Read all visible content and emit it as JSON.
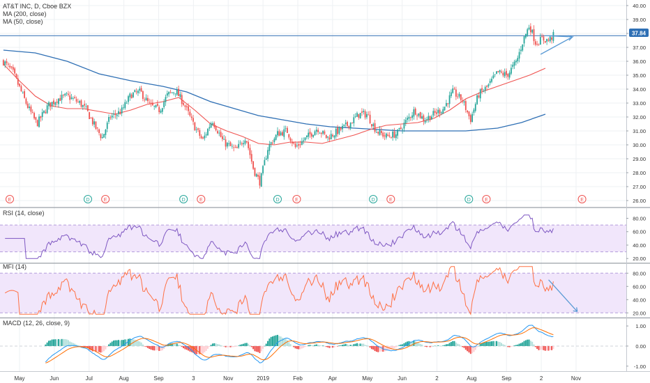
{
  "header": {
    "title": "AT&T INC, D, Cboe BZX",
    "ma200_label": "MA (200, close)",
    "ma50_label": "MA (50, close)"
  },
  "colors": {
    "up": "#26a69a",
    "down": "#ef5350",
    "ma200": "#2e6fb4",
    "ma50": "#ef5350",
    "rsi": "#7e57c2",
    "mfi": "#ff7043",
    "band_fill": "#f1e6fb",
    "macd_line": "#2196f3",
    "signal_line": "#ff6d00",
    "drawing": "#5b9bd5",
    "price_line": "#2e6fb4",
    "axis_text": "#333333",
    "earnings": "#ef5350",
    "dividend": "#26a69a"
  },
  "chart_data": [
    {
      "id": "price",
      "type": "candlestick",
      "title": "AT&T INC, D, Cboe BZX",
      "y_ticks": [
        "26.00",
        "27.00",
        "28.00",
        "29.00",
        "30.00",
        "31.00",
        "32.00",
        "33.00",
        "34.00",
        "35.00",
        "36.00",
        "37.00",
        "38.00",
        "39.00",
        "40.00"
      ],
      "ylim": [
        25.6,
        40.4
      ],
      "last_price_label": "37.84",
      "last_price": 37.84,
      "x_ticks": [
        "May",
        "Jun",
        "Jul",
        "Aug",
        "Sep",
        "3",
        "Nov",
        "2019",
        "Feb",
        "Apr",
        "May",
        "Jun",
        "2",
        "Aug",
        "Sep",
        "2",
        "Nov"
      ],
      "anchors": [
        {
          "t": 0,
          "v": 36.0
        },
        {
          "t": 0.6,
          "v": 35.2
        },
        {
          "t": 1.5,
          "v": 32.8
        },
        {
          "t": 2.1,
          "v": 31.5
        },
        {
          "t": 2.8,
          "v": 32.8
        },
        {
          "t": 3.4,
          "v": 33.3
        },
        {
          "t": 4.0,
          "v": 33.5
        },
        {
          "t": 4.8,
          "v": 33.0
        },
        {
          "t": 5.2,
          "v": 32.5
        },
        {
          "t": 5.8,
          "v": 31.2
        },
        {
          "t": 6.2,
          "v": 30.5
        },
        {
          "t": 6.7,
          "v": 32.0
        },
        {
          "t": 7.4,
          "v": 32.4
        },
        {
          "t": 8.0,
          "v": 33.6
        },
        {
          "t": 8.6,
          "v": 33.8
        },
        {
          "t": 9.2,
          "v": 32.8
        },
        {
          "t": 9.8,
          "v": 32.5
        },
        {
          "t": 10.3,
          "v": 33.6
        },
        {
          "t": 10.8,
          "v": 33.9
        },
        {
          "t": 11.3,
          "v": 33.0
        },
        {
          "t": 11.9,
          "v": 31.5
        },
        {
          "t": 12.5,
          "v": 30.3
        },
        {
          "t": 13.1,
          "v": 31.8
        },
        {
          "t": 13.8,
          "v": 30.2
        },
        {
          "t": 14.6,
          "v": 29.6
        },
        {
          "t": 15.2,
          "v": 30.6
        },
        {
          "t": 15.7,
          "v": 28.2
        },
        {
          "t": 16.1,
          "v": 27.3
        },
        {
          "t": 16.6,
          "v": 29.8
        },
        {
          "t": 17.2,
          "v": 30.8
        },
        {
          "t": 17.8,
          "v": 31.0
        },
        {
          "t": 18.3,
          "v": 29.8
        },
        {
          "t": 19.0,
          "v": 30.5
        },
        {
          "t": 19.7,
          "v": 31.2
        },
        {
          "t": 20.3,
          "v": 30.5
        },
        {
          "t": 21.0,
          "v": 31.0
        },
        {
          "t": 21.7,
          "v": 31.5
        },
        {
          "t": 22.3,
          "v": 32.2
        },
        {
          "t": 22.8,
          "v": 32.2
        },
        {
          "t": 23.4,
          "v": 31.0
        },
        {
          "t": 24.0,
          "v": 30.6
        },
        {
          "t": 24.7,
          "v": 30.8
        },
        {
          "t": 25.2,
          "v": 31.6
        },
        {
          "t": 25.8,
          "v": 32.5
        },
        {
          "t": 26.4,
          "v": 31.8
        },
        {
          "t": 27.0,
          "v": 32.2
        },
        {
          "t": 27.6,
          "v": 32.6
        },
        {
          "t": 28.2,
          "v": 33.8
        },
        {
          "t": 28.8,
          "v": 33.2
        },
        {
          "t": 29.3,
          "v": 31.8
        },
        {
          "t": 29.8,
          "v": 33.6
        },
        {
          "t": 30.4,
          "v": 34.2
        },
        {
          "t": 31.0,
          "v": 35.2
        },
        {
          "t": 31.6,
          "v": 35.0
        },
        {
          "t": 32.2,
          "v": 36.0
        },
        {
          "t": 32.6,
          "v": 37.5
        },
        {
          "t": 33.0,
          "v": 38.6
        },
        {
          "t": 33.4,
          "v": 37.3
        },
        {
          "t": 33.8,
          "v": 37.6
        },
        {
          "t": 34.2,
          "v": 37.5
        },
        {
          "t": 34.5,
          "v": 37.84
        }
      ],
      "series": [
        {
          "name": "MA (200, close)",
          "points": [
            [
              0,
              36.8
            ],
            [
              2,
              36.6
            ],
            [
              4,
              36.0
            ],
            [
              6,
              35.1
            ],
            [
              8,
              34.6
            ],
            [
              10,
              34.2
            ],
            [
              11.5,
              33.8
            ],
            [
              13,
              33.1
            ],
            [
              14.5,
              32.6
            ],
            [
              16,
              32.1
            ],
            [
              17.5,
              31.8
            ],
            [
              19,
              31.5
            ],
            [
              20.5,
              31.3
            ],
            [
              22,
              31.2
            ],
            [
              23.5,
              31.1
            ],
            [
              25,
              31.0
            ],
            [
              27,
              31.0
            ],
            [
              29,
              31.0
            ],
            [
              31,
              31.2
            ],
            [
              32.5,
              31.6
            ],
            [
              34,
              32.2
            ]
          ]
        },
        {
          "name": "MA (50, close)",
          "points": [
            [
              0,
              35.8
            ],
            [
              1,
              34.6
            ],
            [
              2,
              33.5
            ],
            [
              3,
              32.8
            ],
            [
              4,
              32.6
            ],
            [
              5,
              32.6
            ],
            [
              6,
              32.4
            ],
            [
              7,
              32.2
            ],
            [
              8,
              32.5
            ],
            [
              9,
              32.9
            ],
            [
              10,
              33.1
            ],
            [
              11,
              33.4
            ],
            [
              12,
              32.5
            ],
            [
              13,
              31.5
            ],
            [
              14,
              31.0
            ],
            [
              15,
              30.6
            ],
            [
              16,
              30.1
            ],
            [
              17,
              30.0
            ],
            [
              18,
              30.2
            ],
            [
              19,
              30.2
            ],
            [
              20,
              30.1
            ],
            [
              21,
              30.4
            ],
            [
              22,
              30.7
            ],
            [
              23,
              31.1
            ],
            [
              24,
              31.4
            ],
            [
              25,
              31.5
            ],
            [
              26,
              31.6
            ],
            [
              27,
              31.9
            ],
            [
              28,
              32.5
            ],
            [
              29,
              33.3
            ],
            [
              30,
              33.8
            ],
            [
              31,
              34.2
            ],
            [
              32,
              34.6
            ],
            [
              33,
              35.0
            ],
            [
              34,
              35.5
            ]
          ]
        }
      ],
      "events": [
        {
          "t": 0.4,
          "label": "E"
        },
        {
          "t": 5.3,
          "label": "D"
        },
        {
          "t": 6.4,
          "label": "E"
        },
        {
          "t": 11.3,
          "label": "D"
        },
        {
          "t": 12.4,
          "label": "E"
        },
        {
          "t": 17.2,
          "label": "D"
        },
        {
          "t": 18.4,
          "label": "E"
        },
        {
          "t": 23.2,
          "label": "D"
        },
        {
          "t": 24.3,
          "label": "E"
        },
        {
          "t": 29.2,
          "label": "D"
        },
        {
          "t": 30.3,
          "label": "E"
        },
        {
          "t": 36.3,
          "label": "E"
        }
      ],
      "drawing": [
        [
          33.7,
          36.5
        ],
        [
          35.7,
          37.75
        ],
        [
          34.0,
          37.84
        ]
      ]
    },
    {
      "id": "rsi",
      "type": "line",
      "title": "RSI (14, close)",
      "y_ticks": [
        "20.00",
        "40.00",
        "60.00",
        "80.00"
      ],
      "ylim": [
        14,
        94
      ],
      "band": [
        30,
        70
      ],
      "series": [
        {
          "name": "RSI (14, close)"
        }
      ]
    },
    {
      "id": "mfi",
      "type": "line",
      "title": "MFI (14)",
      "y_ticks": [
        "20.00",
        "40.00",
        "60.00",
        "80.00"
      ],
      "ylim": [
        14,
        94
      ],
      "band": [
        20,
        80
      ],
      "series": [
        {
          "name": "MFI (14)"
        }
      ],
      "drawing": [
        [
          34.2,
          70
        ],
        [
          36.0,
          22
        ]
      ]
    },
    {
      "id": "macd",
      "type": "line",
      "title": "MACD (12, 26, close, 9)",
      "y_ticks": [
        "1.00",
        "0.00",
        "-1.00"
      ],
      "ylim": [
        -1.25,
        1.35
      ],
      "series": [
        {
          "name": "MACD"
        },
        {
          "name": "Signal"
        },
        {
          "name": "Histogram"
        }
      ]
    }
  ]
}
